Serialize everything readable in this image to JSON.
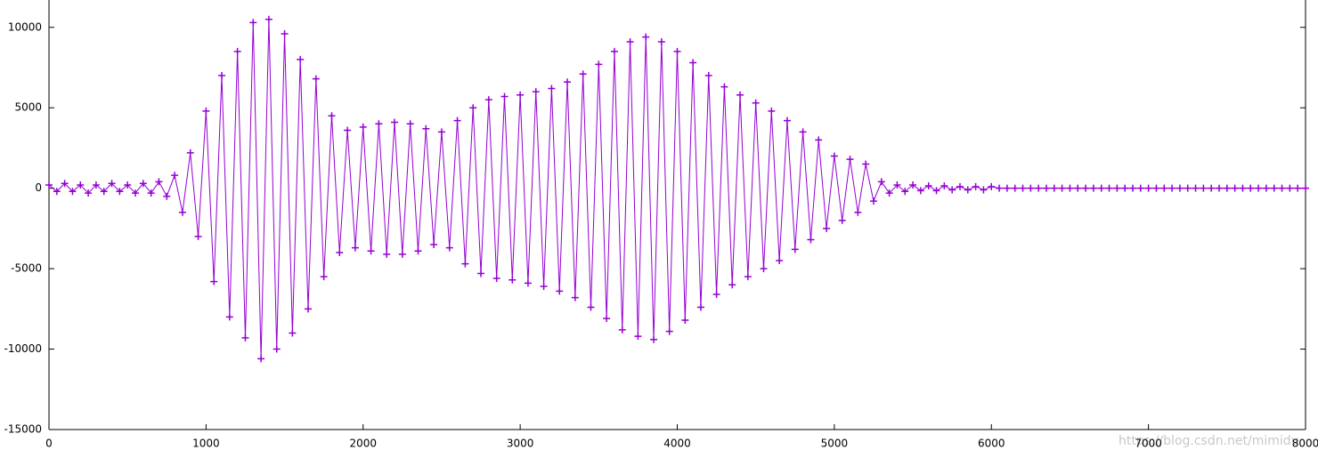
{
  "chart_data": {
    "type": "line",
    "marker": "+",
    "color": "#9400d3",
    "x": [
      0,
      50,
      100,
      150,
      200,
      250,
      300,
      350,
      400,
      450,
      500,
      550,
      600,
      650,
      700,
      750,
      800,
      850,
      900,
      950,
      1000,
      1050,
      1100,
      1150,
      1200,
      1250,
      1300,
      1350,
      1400,
      1450,
      1500,
      1550,
      1600,
      1650,
      1700,
      1750,
      1800,
      1850,
      1900,
      1950,
      2000,
      2050,
      2100,
      2150,
      2200,
      2250,
      2300,
      2350,
      2400,
      2450,
      2500,
      2550,
      2600,
      2650,
      2700,
      2750,
      2800,
      2850,
      2900,
      2950,
      3000,
      3050,
      3100,
      3150,
      3200,
      3250,
      3300,
      3350,
      3400,
      3450,
      3500,
      3550,
      3600,
      3650,
      3700,
      3750,
      3800,
      3850,
      3900,
      3950,
      4000,
      4050,
      4100,
      4150,
      4200,
      4250,
      4300,
      4350,
      4400,
      4450,
      4500,
      4550,
      4600,
      4650,
      4700,
      4750,
      4800,
      4850,
      4900,
      4950,
      5000,
      5050,
      5100,
      5150,
      5200,
      5250,
      5300,
      5350,
      5400,
      5450,
      5500,
      5550,
      5600,
      5650,
      5700,
      5750,
      5800,
      5850,
      5900,
      5950,
      6000,
      6050,
      6100,
      6150,
      6200,
      6250,
      6300,
      6350,
      6400,
      6450,
      6500,
      6550,
      6600,
      6650,
      6700,
      6750,
      6800,
      6850,
      6900,
      6950,
      7000,
      7050,
      7100,
      7150,
      7200,
      7250,
      7300,
      7350,
      7400,
      7450,
      7500,
      7550,
      7600,
      7650,
      7700,
      7750,
      7800,
      7850,
      7900,
      7950,
      8000
    ],
    "values": [
      200,
      -200,
      300,
      -200,
      200,
      -300,
      200,
      -200,
      300,
      -200,
      200,
      -300,
      300,
      -300,
      400,
      -500,
      800,
      -1500,
      2200,
      -3000,
      4800,
      -5800,
      7000,
      -8000,
      8500,
      -9300,
      10300,
      -10600,
      10500,
      -10000,
      9600,
      -9000,
      8000,
      -7500,
      6800,
      -5500,
      4500,
      -4000,
      3600,
      -3700,
      3800,
      -3900,
      4000,
      -4100,
      4100,
      -4100,
      4000,
      -3900,
      3700,
      -3500,
      3500,
      -3700,
      4200,
      -4700,
      5000,
      -5300,
      5500,
      -5600,
      5700,
      -5700,
      5800,
      -5900,
      6000,
      -6100,
      6200,
      -6400,
      6600,
      -6800,
      7100,
      -7400,
      7700,
      -8100,
      8500,
      -8800,
      9100,
      -9200,
      9400,
      -9400,
      9100,
      -8900,
      8500,
      -8200,
      7800,
      -7400,
      7000,
      -6600,
      6300,
      -6000,
      5800,
      -5500,
      5300,
      -5000,
      4800,
      -4500,
      4200,
      -3800,
      3500,
      -3200,
      3000,
      -2500,
      2000,
      -2000,
      1800,
      -1500,
      1500,
      -800,
      400,
      -300,
      200,
      -200,
      200,
      -150,
      150,
      -150,
      150,
      -100,
      100,
      -100,
      100,
      -100,
      100,
      0,
      0,
      0,
      0,
      0,
      0,
      0,
      0,
      0,
      0,
      0,
      0,
      0,
      0,
      0,
      0,
      0,
      0,
      0,
      0,
      0,
      0,
      0,
      0,
      0,
      0,
      0,
      0,
      0,
      0,
      0,
      0,
      0,
      0,
      0,
      0,
      0,
      0,
      0,
      0
    ],
    "xlim": [
      0,
      8000
    ],
    "xticks": [
      0,
      1000,
      2000,
      3000,
      4000,
      5000,
      6000,
      7000,
      8000
    ],
    "ylim": [
      -15000,
      11700
    ],
    "yticks": [
      -15000,
      -10000,
      -5000,
      0,
      5000,
      10000
    ],
    "watermark": "https://blog.csdn.net/mimidu"
  }
}
